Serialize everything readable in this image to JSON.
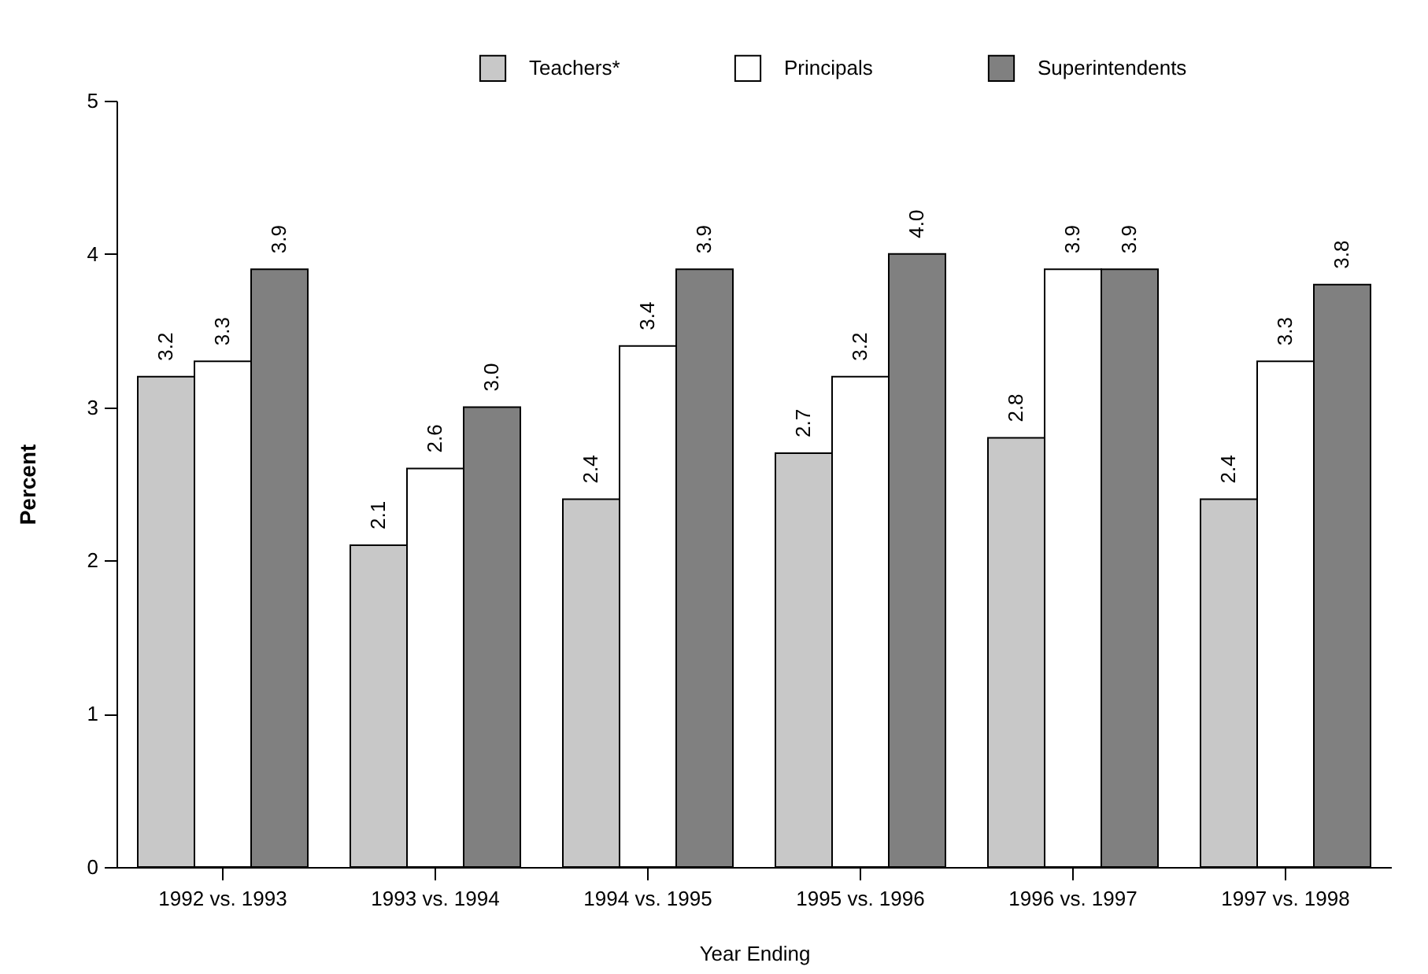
{
  "chart_data": {
    "type": "bar",
    "xlabel": "Year Ending",
    "ylabel": "Percent",
    "categories": [
      "1992 vs. 1993",
      "1993 vs. 1994",
      "1994 vs. 1995",
      "1995 vs. 1996",
      "1996 vs. 1997",
      "1997 vs. 1998"
    ],
    "series": [
      {
        "name": "Teachers*",
        "color": "#c8c8c8",
        "values": [
          3.2,
          2.1,
          2.4,
          2.7,
          2.8,
          2.4
        ],
        "value_labels": [
          "3.2",
          "2.1",
          "2.4",
          "2.7",
          "2.8",
          "2.4"
        ]
      },
      {
        "name": "Principals",
        "color": "#ffffff",
        "values": [
          3.3,
          2.6,
          3.4,
          3.2,
          3.9,
          3.3
        ],
        "value_labels": [
          "3.3",
          "2.6",
          "3.4",
          "3.2",
          "3.9",
          "3.3"
        ]
      },
      {
        "name": "Superintendents",
        "color": "#808080",
        "values": [
          3.9,
          3.0,
          3.9,
          4.0,
          3.9,
          3.8
        ],
        "value_labels": [
          "3.9",
          "3.0",
          "3.9",
          "4.0",
          "3.9",
          "3.8"
        ]
      }
    ],
    "ylim": [
      0,
      5
    ],
    "yticks": [
      0,
      1,
      2,
      3,
      4,
      5
    ],
    "grid": false,
    "legend": "top"
  }
}
